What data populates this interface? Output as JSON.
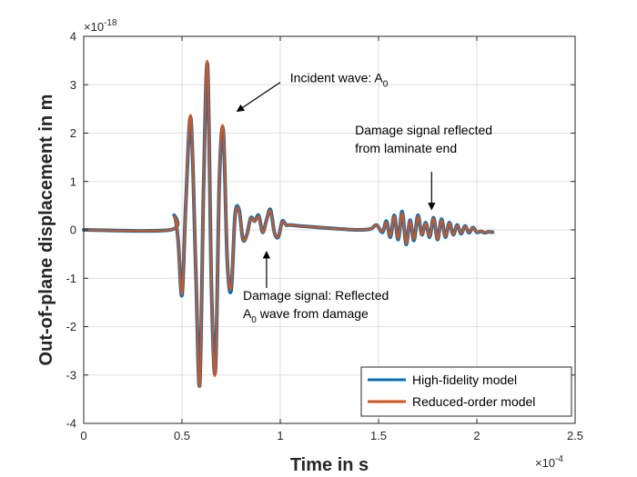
{
  "chart_data": {
    "type": "line",
    "title": "",
    "xlabel": "Time in s",
    "ylabel": "Out-of-plane displacement in m",
    "x_exponent_label": "×10",
    "x_exponent": "-4",
    "y_exponent_label": "×10",
    "y_exponent": "-18",
    "xlim": [
      0,
      2.5
    ],
    "ylim": [
      -4,
      4
    ],
    "x_ticks": [
      0,
      0.5,
      1,
      1.5,
      2,
      2.5
    ],
    "x_tick_labels": [
      "0",
      "0.5",
      "1",
      "1.5",
      "2",
      "2.5"
    ],
    "y_ticks": [
      -4,
      -3,
      -2,
      -1,
      0,
      1,
      2,
      3,
      4
    ],
    "y_tick_labels": [
      "-4",
      "-3",
      "-2",
      "-1",
      "0",
      "1",
      "2",
      "3",
      "4"
    ],
    "grid": true,
    "legend_position": "bottom-right",
    "series": [
      {
        "name": "High-fidelity model",
        "color": "#0072BD",
        "x": [
          0,
          0.44,
          0.46,
          0.48,
          0.5,
          0.52,
          0.545,
          0.57,
          0.59,
          0.61,
          0.63,
          0.65,
          0.67,
          0.69,
          0.71,
          0.73,
          0.75,
          0.77,
          0.79,
          0.81,
          0.83,
          0.85,
          0.87,
          0.89,
          0.91,
          0.93,
          0.95,
          0.97,
          0.99,
          1.01,
          1.03,
          1.05,
          1.1,
          1.2,
          1.3,
          1.4,
          1.46,
          1.49,
          1.52,
          1.54,
          1.56,
          1.58,
          1.6,
          1.62,
          1.64,
          1.66,
          1.68,
          1.7,
          1.72,
          1.74,
          1.76,
          1.78,
          1.8,
          1.82,
          1.84,
          1.86,
          1.88,
          1.9,
          1.92,
          1.94,
          1.96,
          1.98,
          2.0,
          2.02,
          2.04,
          2.06,
          2.08
        ],
        "y": [
          0,
          0,
          0.3,
          -0.2,
          -1.35,
          0.6,
          2.3,
          -0.8,
          -3.2,
          0.9,
          3.4,
          -1.2,
          -2.9,
          1.0,
          2.05,
          -0.6,
          -1.25,
          0.3,
          0.42,
          -0.2,
          -0.1,
          0.25,
          0.18,
          0.3,
          -0.05,
          0.2,
          0.42,
          -0.05,
          -0.15,
          0.18,
          0.1,
          0.1,
          0.08,
          0.05,
          0.02,
          0,
          0.02,
          0.1,
          -0.05,
          0.18,
          -0.15,
          0.3,
          -0.2,
          0.38,
          -0.3,
          0.2,
          -0.22,
          0.3,
          -0.1,
          0.15,
          -0.15,
          0.25,
          -0.2,
          0.22,
          -0.15,
          0.15,
          -0.1,
          0.1,
          -0.08,
          0.08,
          -0.06,
          0.05,
          -0.05,
          -0.03,
          -0.06,
          -0.04,
          -0.05
        ]
      },
      {
        "name": "Reduced-order model",
        "color": "#D95319",
        "x": [
          0,
          0.44,
          0.46,
          0.48,
          0.5,
          0.52,
          0.545,
          0.57,
          0.59,
          0.61,
          0.63,
          0.65,
          0.67,
          0.69,
          0.71,
          0.73,
          0.75,
          0.77,
          0.79,
          0.81,
          0.83,
          0.85,
          0.87,
          0.89,
          0.91,
          0.93,
          0.95,
          0.97,
          0.99,
          1.01,
          1.03,
          1.05,
          1.1,
          1.2,
          1.3,
          1.4,
          1.46,
          1.49,
          1.52,
          1.54,
          1.56,
          1.58,
          1.6,
          1.62,
          1.64,
          1.66,
          1.68,
          1.7,
          1.72,
          1.74,
          1.76,
          1.78,
          1.8,
          1.82,
          1.84,
          1.86,
          1.88,
          1.9,
          1.92,
          1.94,
          1.96,
          1.98,
          2.0,
          2.02,
          2.04,
          2.06,
          2.08
        ],
        "y": [
          0,
          0,
          0.28,
          -0.2,
          -1.32,
          0.58,
          2.35,
          -0.78,
          -3.22,
          0.88,
          3.45,
          -1.18,
          -2.95,
          0.98,
          2.1,
          -0.58,
          -1.2,
          0.28,
          0.4,
          -0.2,
          -0.1,
          0.24,
          0.17,
          0.28,
          -0.05,
          0.19,
          0.4,
          -0.05,
          -0.14,
          0.17,
          0.1,
          0.1,
          0.08,
          0.05,
          0.02,
          0,
          0.02,
          0.1,
          -0.04,
          0.16,
          -0.13,
          0.28,
          -0.18,
          0.35,
          -0.28,
          0.18,
          -0.2,
          0.28,
          -0.1,
          0.14,
          -0.14,
          0.24,
          -0.19,
          0.2,
          -0.14,
          0.14,
          -0.1,
          0.09,
          -0.07,
          0.07,
          -0.05,
          0.05,
          -0.04,
          -0.03,
          -0.05,
          -0.04,
          -0.05
        ]
      }
    ],
    "annotations": [
      {
        "id": "incident",
        "lines": [
          {
            "text": "Incident wave: A",
            "sub": "0"
          }
        ],
        "arrow_to": [
          0.78,
          2.45
        ],
        "text_at": [
          1.05,
          3.05
        ],
        "arrow_from": [
          1.0,
          3.05
        ]
      },
      {
        "id": "damage",
        "lines": [
          {
            "text": "Damage signal: Reflected",
            "sub": ""
          },
          {
            "text": "A",
            "sub": "0",
            "rest": " wave from damage"
          }
        ],
        "arrow_to": [
          0.93,
          -0.45
        ],
        "arrow_from": [
          0.93,
          -1.2
        ],
        "text_at": [
          0.81,
          -1.45
        ]
      },
      {
        "id": "laminate",
        "lines": [
          {
            "text": "Damage signal reflected",
            "sub": ""
          },
          {
            "text": "from laminate end",
            "sub": ""
          }
        ],
        "arrow_to": [
          1.77,
          0.42
        ],
        "arrow_from": [
          1.77,
          1.2
        ],
        "text_at": [
          1.38,
          1.97
        ]
      }
    ]
  }
}
